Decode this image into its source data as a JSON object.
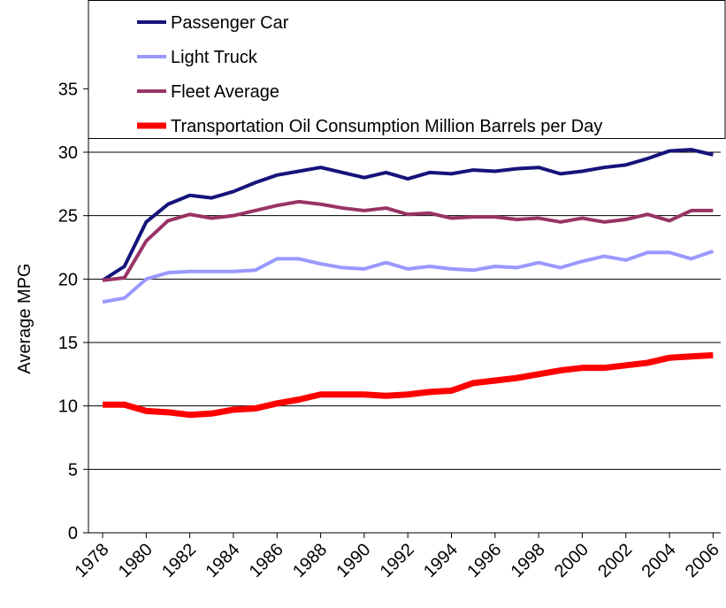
{
  "chart_data": {
    "type": "line",
    "y_label": "Average MPG",
    "x": [
      1978,
      1979,
      1980,
      1981,
      1982,
      1983,
      1984,
      1985,
      1986,
      1987,
      1988,
      1989,
      1990,
      1991,
      1992,
      1993,
      1994,
      1995,
      1996,
      1997,
      1998,
      1999,
      2000,
      2001,
      2002,
      2003,
      2004,
      2005,
      2006
    ],
    "series": [
      {
        "name": "Passenger Car",
        "color": "#14147a",
        "values": [
          19.9,
          21.0,
          24.5,
          25.9,
          26.6,
          26.4,
          26.9,
          27.6,
          28.2,
          28.5,
          28.8,
          28.4,
          28.0,
          28.4,
          27.9,
          28.4,
          28.3,
          28.6,
          28.5,
          28.7,
          28.8,
          28.3,
          28.5,
          28.8,
          29.0,
          29.5,
          30.1,
          30.2,
          29.8
        ]
      },
      {
        "name": "Light Truck",
        "color": "#9999ff",
        "values": [
          18.2,
          18.5,
          20.0,
          20.5,
          20.6,
          20.6,
          20.6,
          20.7,
          21.6,
          21.6,
          21.2,
          20.9,
          20.8,
          21.3,
          20.8,
          21.0,
          20.8,
          20.7,
          21.0,
          20.9,
          21.3,
          20.9,
          21.4,
          21.8,
          21.5,
          22.1,
          22.1,
          21.6,
          22.2
        ]
      },
      {
        "name": "Fleet Average",
        "color": "#993366",
        "values": [
          19.9,
          20.1,
          23.0,
          24.6,
          25.1,
          24.8,
          25.0,
          25.4,
          25.8,
          26.1,
          25.9,
          25.6,
          25.4,
          25.6,
          25.1,
          25.2,
          24.8,
          24.9,
          24.9,
          24.7,
          24.8,
          24.5,
          24.8,
          24.5,
          24.7,
          25.1,
          24.6,
          25.4,
          25.4
        ]
      },
      {
        "name": "Transportation Oil Consumption Million Barrels per Day",
        "color": "#ff0000",
        "values": [
          10.1,
          10.1,
          9.6,
          9.5,
          9.3,
          9.4,
          9.7,
          9.8,
          10.2,
          10.5,
          10.9,
          10.9,
          10.9,
          10.8,
          10.9,
          11.1,
          11.2,
          11.8,
          12.0,
          12.2,
          12.5,
          12.8,
          13.0,
          13.0,
          13.2,
          13.4,
          13.8,
          13.9,
          14.0
        ]
      }
    ],
    "xlim": [
      1977.35,
      2006.35
    ],
    "xticks": [
      1978,
      1980,
      1982,
      1984,
      1986,
      1988,
      1990,
      1992,
      1994,
      1996,
      1998,
      2000,
      2002,
      2004,
      2006
    ],
    "ylim": [
      0,
      42
    ],
    "yticks": [
      0,
      5,
      10,
      15,
      20,
      25,
      30,
      35
    ],
    "grid": true,
    "legend": "top"
  }
}
